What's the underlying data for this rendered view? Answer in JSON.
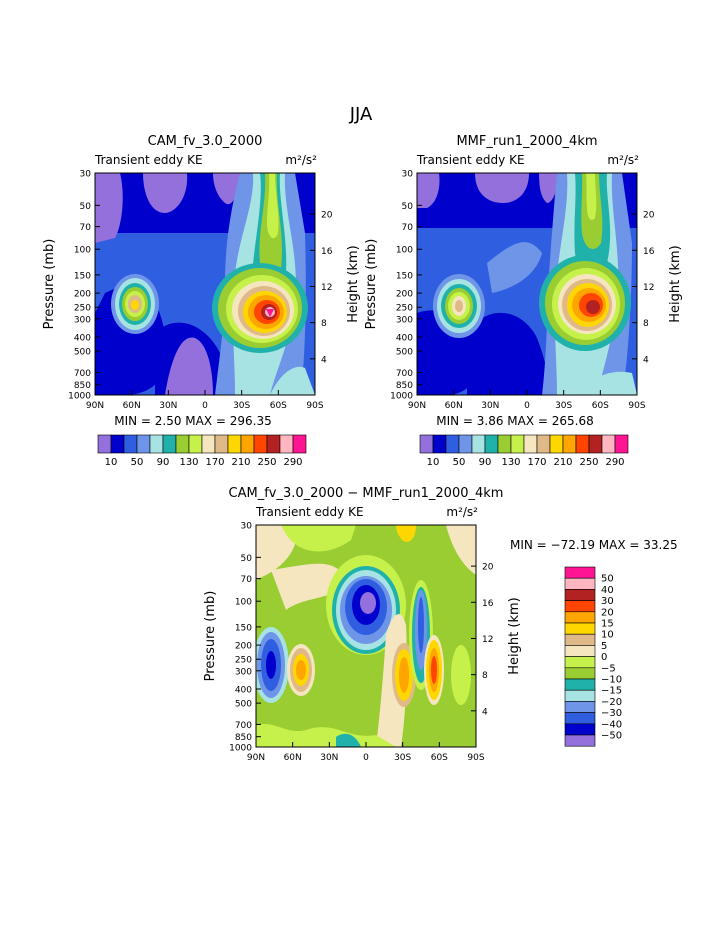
{
  "figure": {
    "season": "JJA"
  },
  "panels": {
    "cam": {
      "title": "CAM_fv_3.0_2000",
      "subtitle": "Transient eddy KE",
      "units": "m²/s²",
      "ylabel": "Pressure (mb)",
      "ylabel_right": "Height (km)",
      "stats": "MIN =    2.50   MAX = 296.35"
    },
    "mmf": {
      "title": "MMF_run1_2000_4km",
      "subtitle": "Transient eddy KE",
      "units": "m²/s²",
      "ylabel": "Pressure (mb)",
      "ylabel_right": "Height (km)",
      "stats": "MIN =    3.86   MAX = 265.68"
    },
    "diff": {
      "title": "CAM_fv_3.0_2000 − MMF_run1_2000_4km",
      "subtitle": "Transient eddy KE",
      "units": "m²/s²",
      "ylabel": "Pressure (mb)",
      "ylabel_right": "Height (km)",
      "stats": "MIN = −72.19   MAX =  33.25"
    }
  },
  "chart_data": [
    {
      "type": "heatmap",
      "panel": "cam",
      "x_ticks": [
        "90N",
        "60N",
        "30N",
        "0",
        "30S",
        "60S",
        "90S"
      ],
      "y_ticks": [
        "30",
        "50",
        "70",
        "100",
        "150",
        "200",
        "250",
        "300",
        "400",
        "500",
        "700",
        "850",
        "1000"
      ],
      "y_scale": "log",
      "ylim_mb": [
        1000,
        30
      ],
      "y2_ticks": [
        "20",
        "16",
        "12",
        "8",
        "4"
      ],
      "colorbar": {
        "labels": [
          "10",
          "50",
          "90",
          "130",
          "170",
          "210",
          "250",
          "290"
        ],
        "colors": [
          "#9370db",
          "#0000cd",
          "#2f5fe0",
          "#6e95e8",
          "#a8e3e3",
          "#20b2aa",
          "#9acd32",
          "#c6f04a",
          "#f5e6c0",
          "#dfb988",
          "#ffd700",
          "#ffa500",
          "#ff4500",
          "#b22222",
          "#ffb6c1",
          "#ff1493"
        ]
      },
      "max_region": "~60S, 250 mb",
      "secondary_max_region": "~60N, 250 mb"
    },
    {
      "type": "heatmap",
      "panel": "mmf",
      "x_ticks": [
        "90N",
        "60N",
        "30N",
        "0",
        "30S",
        "60S",
        "90S"
      ],
      "y_ticks": [
        "30",
        "50",
        "70",
        "100",
        "150",
        "200",
        "250",
        "300",
        "400",
        "500",
        "700",
        "850",
        "1000"
      ],
      "y_scale": "log",
      "ylim_mb": [
        1000,
        30
      ],
      "y2_ticks": [
        "20",
        "16",
        "12",
        "8",
        "4"
      ],
      "colorbar": {
        "labels": [
          "10",
          "50",
          "90",
          "130",
          "170",
          "210",
          "250",
          "290"
        ],
        "colors": [
          "#9370db",
          "#0000cd",
          "#2f5fe0",
          "#6e95e8",
          "#a8e3e3",
          "#20b2aa",
          "#9acd32",
          "#c6f04a",
          "#f5e6c0",
          "#dfb988",
          "#ffd700",
          "#ffa500",
          "#ff4500",
          "#b22222",
          "#ffb6c1",
          "#ff1493"
        ]
      },
      "max_region": "~50S, 275 mb",
      "secondary_max_region": "~60N, 250 mb"
    },
    {
      "type": "heatmap",
      "panel": "diff",
      "x_ticks": [
        "90N",
        "60N",
        "30N",
        "0",
        "30S",
        "60S",
        "90S"
      ],
      "y_ticks": [
        "30",
        "50",
        "70",
        "100",
        "150",
        "200",
        "250",
        "300",
        "400",
        "500",
        "700",
        "850",
        "1000"
      ],
      "y_scale": "log",
      "ylim_mb": [
        1000,
        30
      ],
      "y2_ticks": [
        "20",
        "16",
        "12",
        "8",
        "4"
      ],
      "colorbar": {
        "labels": [
          "50",
          "40",
          "30",
          "20",
          "15",
          "10",
          "5",
          "0",
          "−5",
          "−10",
          "−15",
          "−20",
          "−30",
          "−40",
          "−50"
        ],
        "colors": [
          "#ff1493",
          "#ffb6c1",
          "#b22222",
          "#ff4500",
          "#ffa500",
          "#ffd700",
          "#dfb988",
          "#f5e6c0",
          "#c6f04a",
          "#9acd32",
          "#20b2aa",
          "#a8e3e3",
          "#6e95e8",
          "#2f5fe0",
          "#0000cd",
          "#9370db"
        ]
      }
    }
  ]
}
